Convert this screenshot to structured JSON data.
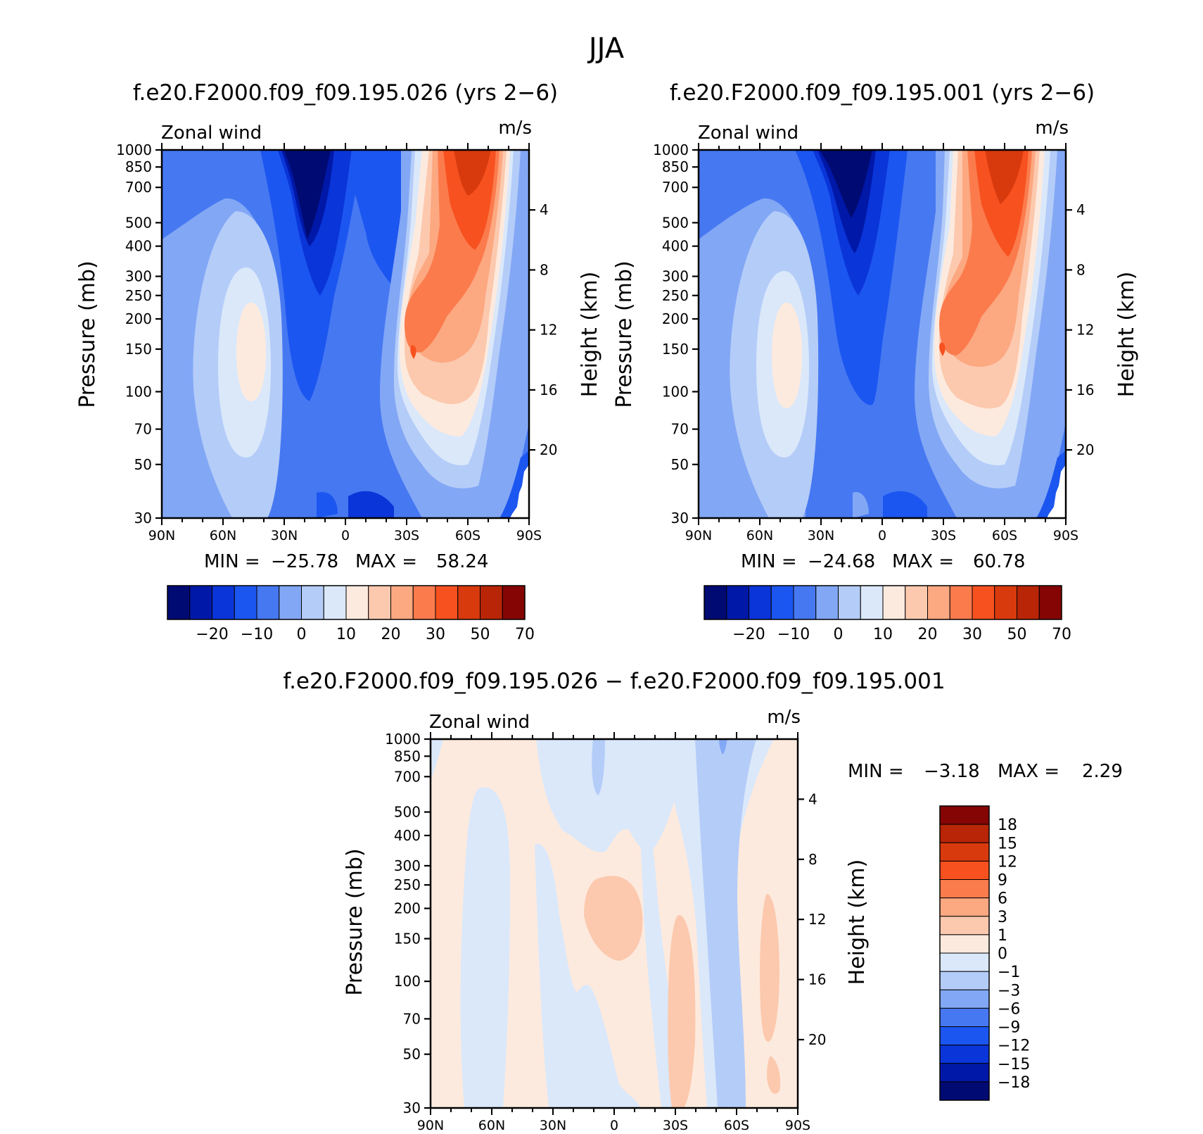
{
  "figure": {
    "title": "JJA",
    "diff_title": "f.e20.F2000.f09_f09.195.026 − f.e20.F2000.f09_f09.195.001"
  },
  "chart_data": [
    {
      "type": "heatmap",
      "title": "f.e20.F2000.f09_f09.195.026 (yrs 2−6)",
      "variable": "Zonal wind",
      "units": "m/s",
      "ylabel": "Pressure (mb)",
      "y2label": "Height (km)",
      "x_ticks": [
        "90N",
        "60N",
        "30N",
        "0",
        "30S",
        "60S",
        "90S"
      ],
      "y_ticks": [
        30,
        50,
        70,
        100,
        150,
        200,
        250,
        300,
        400,
        500,
        700,
        850,
        1000
      ],
      "y2_ticks": [
        20,
        16,
        12,
        8,
        4
      ],
      "y_scale": "log",
      "xlim": [
        90,
        -90
      ],
      "ylim": [
        1000,
        30
      ],
      "min_label": "MIN =",
      "min_value": "−25.78",
      "max_label": "MAX =",
      "max_value": "58.24",
      "colorbar": {
        "orientation": "horizontal",
        "labels": [
          "−20",
          "−10",
          "0",
          "10",
          "20",
          "30",
          "50",
          "70"
        ],
        "colors": [
          "#000a73",
          "#0018a8",
          "#0a35d8",
          "#1c56f0",
          "#4678f2",
          "#82a7f5",
          "#b4ccf8",
          "#dae8fa",
          "#fdeade",
          "#fcc9ae",
          "#fca881",
          "#fb7b4d",
          "#f7511f",
          "#d83a0d",
          "#b82507",
          "#850505"
        ]
      }
    },
    {
      "type": "heatmap",
      "title": "f.e20.F2000.f09_f09.195.001 (yrs 2−6)",
      "variable": "Zonal wind",
      "units": "m/s",
      "ylabel": "Pressure (mb)",
      "y2label": "Height (km)",
      "x_ticks": [
        "90N",
        "60N",
        "30N",
        "0",
        "30S",
        "60S",
        "90S"
      ],
      "y_ticks": [
        30,
        50,
        70,
        100,
        150,
        200,
        250,
        300,
        400,
        500,
        700,
        850,
        1000
      ],
      "y2_ticks": [
        20,
        16,
        12,
        8,
        4
      ],
      "y_scale": "log",
      "xlim": [
        90,
        -90
      ],
      "ylim": [
        1000,
        30
      ],
      "min_label": "MIN =",
      "min_value": "−24.68",
      "max_label": "MAX =",
      "max_value": "60.78",
      "colorbar": {
        "orientation": "horizontal",
        "labels": [
          "−20",
          "−10",
          "0",
          "10",
          "20",
          "30",
          "50",
          "70"
        ],
        "colors": [
          "#000a73",
          "#0018a8",
          "#0a35d8",
          "#1c56f0",
          "#4678f2",
          "#82a7f5",
          "#b4ccf8",
          "#dae8fa",
          "#fdeade",
          "#fcc9ae",
          "#fca881",
          "#fb7b4d",
          "#f7511f",
          "#d83a0d",
          "#b82507",
          "#850505"
        ]
      }
    },
    {
      "type": "heatmap",
      "title": "",
      "variable": "Zonal wind",
      "units": "m/s",
      "ylabel": "Pressure (mb)",
      "y2label": "Height (km)",
      "x_ticks": [
        "90N",
        "60N",
        "30N",
        "0",
        "30S",
        "60S",
        "90S"
      ],
      "y_ticks": [
        30,
        50,
        70,
        100,
        150,
        200,
        250,
        300,
        400,
        500,
        700,
        850,
        1000
      ],
      "y2_ticks": [
        20,
        16,
        12,
        8,
        4
      ],
      "y_scale": "log",
      "xlim": [
        90,
        -90
      ],
      "ylim": [
        1000,
        30
      ],
      "min_label": "MIN =",
      "min_value": "−3.18",
      "max_label": "MAX =",
      "max_value": "2.29",
      "colorbar": {
        "orientation": "vertical",
        "labels": [
          "18",
          "15",
          "12",
          "9",
          "6",
          "3",
          "1",
          "0",
          "−1",
          "−3",
          "−6",
          "−9",
          "−12",
          "−15",
          "−18"
        ],
        "colors": [
          "#850505",
          "#b82507",
          "#d83a0d",
          "#f7511f",
          "#fb7b4d",
          "#fca881",
          "#fcc9ae",
          "#fdeade",
          "#dae8fa",
          "#b4ccf8",
          "#82a7f5",
          "#4678f2",
          "#1c56f0",
          "#0a35d8",
          "#0018a8",
          "#000a73"
        ]
      }
    }
  ]
}
